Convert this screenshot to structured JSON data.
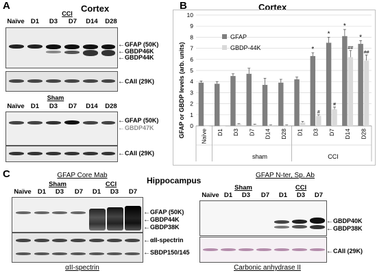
{
  "panel_a": {
    "label": "A",
    "title": "Cortex",
    "cci_header": "CCI",
    "sham_header": "Sham",
    "lanes_top": [
      "Naïve",
      "D1",
      "D3",
      "D7",
      "D14",
      "D28"
    ],
    "lanes_bottom": [
      "Naïve",
      "D1",
      "D3",
      "D7",
      "D14",
      "D28"
    ],
    "top_labels": [
      "GFAP (50K)",
      "GBDP46K",
      "GBDP44K"
    ],
    "top_cail": "CAII (29K)",
    "bottom_labels": [
      "GFAP (50K)",
      "GBDP47K"
    ],
    "bottom_cail": "CAII (29K)"
  },
  "panel_b": {
    "label": "B",
    "title": "Cortex",
    "ylabel": "GFAP or GBDP levels (arb. units)",
    "group_labels": [
      "sham",
      "CCI"
    ],
    "chart_data": {
      "type": "bar",
      "title": "Cortex",
      "ylabel": "GFAP or GBDP levels (arb. units)",
      "ylim": [
        0,
        10
      ],
      "yticks": [
        0,
        1,
        2,
        3,
        4,
        5,
        6,
        7,
        8,
        9,
        10
      ],
      "grid": true,
      "legend_position": "top-left",
      "categories": [
        "Naïve",
        "D1",
        "D3",
        "D7",
        "D14",
        "D28",
        "D1",
        "D3",
        "D7",
        "D14",
        "D28"
      ],
      "series": [
        {
          "name": "GFAP",
          "color": "#7f7f7f",
          "values": [
            3.9,
            3.8,
            4.5,
            4.7,
            3.7,
            3.9,
            4.2,
            6.3,
            7.5,
            8.1,
            7.4
          ],
          "errors": [
            0.15,
            0.2,
            0.2,
            0.5,
            0.6,
            0.3,
            0.2,
            0.3,
            0.5,
            0.6,
            0.3
          ]
        },
        {
          "name": "GBDP-44K",
          "color": "#d9d9d9",
          "values": [
            0.0,
            0.0,
            0.15,
            0.1,
            0.05,
            0.05,
            0.3,
            0.9,
            1.5,
            6.2,
            5.9
          ],
          "errors": [
            0,
            0,
            0.05,
            0.05,
            0.03,
            0.03,
            0.1,
            0.1,
            0.2,
            0.6,
            0.5
          ]
        }
      ],
      "annotations_gfap": [
        "",
        "",
        "",
        "",
        "",
        "",
        "",
        "*",
        "*",
        "*",
        "*"
      ],
      "annotations_gbdp": [
        "",
        "",
        "",
        "",
        "",
        "",
        "",
        "#",
        "#",
        "##",
        "##"
      ]
    }
  },
  "panel_c": {
    "label": "C",
    "title": "Hippocampus",
    "left_header": "GFAP Core Mab",
    "right_header": "GFAP N-ter, Sp. Ab",
    "sham_header": "Sham",
    "cci_header": "CCI",
    "lanes": [
      "Naïve",
      "D1",
      "D3",
      "D7",
      "D1",
      "D3",
      "D7"
    ],
    "left_labels": [
      "GFAP (50K)",
      "GBDP44K",
      "GBDP38K"
    ],
    "left_spectrin_labels": [
      "αII-spectrin",
      "SBDP150/145"
    ],
    "left_caption": "αII-spectrin",
    "right_labels": [
      "GBDP40K",
      "GBDP38K"
    ],
    "right_cail": "CAII  (29K)",
    "right_caption": "Carbonic anhydrase II"
  }
}
